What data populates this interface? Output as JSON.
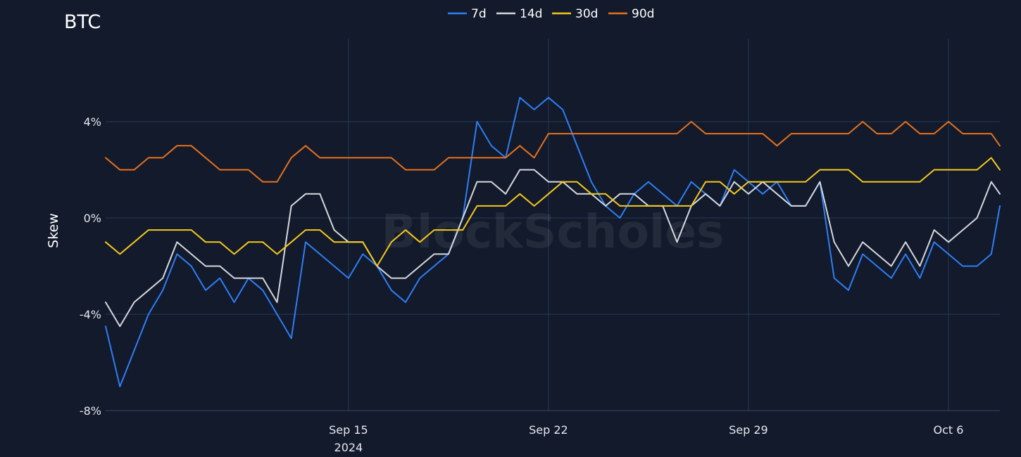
{
  "chart_data": {
    "type": "line",
    "title": "BTC",
    "xlabel": "",
    "ylabel": "Skew",
    "watermark": "BlockScholes",
    "ylim": [
      -8,
      8
    ],
    "y_ticks": [
      {
        "value": 4,
        "label": "4%"
      },
      {
        "value": 0,
        "label": "0%"
      },
      {
        "value": -4,
        "label": "-4%"
      },
      {
        "value": -8,
        "label": "-8%"
      }
    ],
    "x_range_days": [
      0,
      31.3
    ],
    "x_ticks": [
      {
        "day": 8.5,
        "label": "Sep 15",
        "sublabel": "2024"
      },
      {
        "day": 15.5,
        "label": "Sep 22",
        "sublabel": ""
      },
      {
        "day": 22.5,
        "label": "Sep 29",
        "sublabel": ""
      },
      {
        "day": 29.5,
        "label": "Oct 6",
        "sublabel": ""
      }
    ],
    "x_units": "days since Sep 6, 2024 12:00",
    "legend_position": "top-center",
    "series": [
      {
        "name": "7d",
        "color": "#2f7ef5",
        "x": [
          0,
          0.5,
          1,
          1.5,
          2,
          2.5,
          3,
          3.5,
          4,
          4.5,
          5,
          5.5,
          6,
          6.5,
          7,
          7.5,
          8,
          8.5,
          9,
          9.5,
          10,
          10.5,
          11,
          11.5,
          12,
          12.5,
          13,
          13.5,
          14,
          14.5,
          15,
          15.5,
          16,
          16.5,
          17,
          17.5,
          18,
          18.5,
          19,
          19.5,
          20,
          20.5,
          21,
          21.5,
          22,
          22.5,
          23,
          23.5,
          24,
          24.5,
          25,
          25.5,
          26,
          26.5,
          27,
          27.5,
          28,
          28.5,
          29,
          29.5,
          30,
          30.5,
          31,
          31.3
        ],
        "values": [
          -4.5,
          -7.0,
          -5.5,
          -4.0,
          -3.0,
          -1.5,
          -2.0,
          -3.0,
          -2.5,
          -3.5,
          -2.5,
          -3.0,
          -4.0,
          -5.0,
          -1.0,
          -1.5,
          -2.0,
          -2.5,
          -1.5,
          -2.0,
          -3.0,
          -3.5,
          -2.5,
          -2.0,
          -1.5,
          0.0,
          4.0,
          3.0,
          2.5,
          5.0,
          4.5,
          5.0,
          4.5,
          3.0,
          1.5,
          0.5,
          0.0,
          1.0,
          1.5,
          1.0,
          0.5,
          1.5,
          1.0,
          0.5,
          2.0,
          1.5,
          1.0,
          1.5,
          0.5,
          0.5,
          1.5,
          -2.5,
          -3.0,
          -1.5,
          -2.0,
          -2.5,
          -1.5,
          -2.5,
          -1.0,
          -1.5,
          -2.0,
          -2.0,
          -1.5,
          0.5
        ]
      },
      {
        "name": "14d",
        "color": "#d5d8de",
        "x": [
          0,
          0.5,
          1,
          1.5,
          2,
          2.5,
          3,
          3.5,
          4,
          4.5,
          5,
          5.5,
          6,
          6.5,
          7,
          7.5,
          8,
          8.5,
          9,
          9.5,
          10,
          10.5,
          11,
          11.5,
          12,
          12.5,
          13,
          13.5,
          14,
          14.5,
          15,
          15.5,
          16,
          16.5,
          17,
          17.5,
          18,
          18.5,
          19,
          19.5,
          20,
          20.5,
          21,
          21.5,
          22,
          22.5,
          23,
          23.5,
          24,
          24.5,
          25,
          25.5,
          26,
          26.5,
          27,
          27.5,
          28,
          28.5,
          29,
          29.5,
          30,
          30.5,
          31,
          31.3
        ],
        "values": [
          -3.5,
          -4.5,
          -3.5,
          -3.0,
          -2.5,
          -1.0,
          -1.5,
          -2.0,
          -2.0,
          -2.5,
          -2.5,
          -2.5,
          -3.5,
          0.5,
          1.0,
          1.0,
          -0.5,
          -1.0,
          -1.0,
          -2.0,
          -2.5,
          -2.5,
          -2.0,
          -1.5,
          -1.5,
          0.0,
          1.5,
          1.5,
          1.0,
          2.0,
          2.0,
          1.5,
          1.5,
          1.0,
          1.0,
          0.5,
          1.0,
          1.0,
          0.5,
          0.5,
          -1.0,
          0.5,
          1.0,
          0.5,
          1.5,
          1.0,
          1.5,
          1.0,
          0.5,
          0.5,
          1.5,
          -1.0,
          -2.0,
          -1.0,
          -1.5,
          -2.0,
          -1.0,
          -2.0,
          -0.5,
          -1.0,
          -0.5,
          0.0,
          1.5,
          1.0
        ]
      },
      {
        "name": "30d",
        "color": "#f5c81c",
        "x": [
          0,
          0.5,
          1,
          1.5,
          2,
          2.5,
          3,
          3.5,
          4,
          4.5,
          5,
          5.5,
          6,
          6.5,
          7,
          7.5,
          8,
          8.5,
          9,
          9.5,
          10,
          10.5,
          11,
          11.5,
          12,
          12.5,
          13,
          13.5,
          14,
          14.5,
          15,
          15.5,
          16,
          16.5,
          17,
          17.5,
          18,
          18.5,
          19,
          19.5,
          20,
          20.5,
          21,
          21.5,
          22,
          22.5,
          23,
          23.5,
          24,
          24.5,
          25,
          25.5,
          26,
          26.5,
          27,
          27.5,
          28,
          28.5,
          29,
          29.5,
          30,
          30.5,
          31,
          31.3
        ],
        "values": [
          -1.0,
          -1.5,
          -1.0,
          -0.5,
          -0.5,
          -0.5,
          -0.5,
          -1.0,
          -1.0,
          -1.5,
          -1.0,
          -1.0,
          -1.5,
          -1.0,
          -0.5,
          -0.5,
          -1.0,
          -1.0,
          -1.0,
          -2.0,
          -1.0,
          -0.5,
          -1.0,
          -0.5,
          -0.5,
          -0.5,
          0.5,
          0.5,
          0.5,
          1.0,
          0.5,
          1.0,
          1.5,
          1.5,
          1.0,
          1.0,
          0.5,
          0.5,
          0.5,
          0.5,
          0.5,
          0.5,
          1.5,
          1.5,
          1.0,
          1.5,
          1.5,
          1.5,
          1.5,
          1.5,
          2.0,
          2.0,
          2.0,
          1.5,
          1.5,
          1.5,
          1.5,
          1.5,
          2.0,
          2.0,
          2.0,
          2.0,
          2.5,
          2.0
        ]
      },
      {
        "name": "90d",
        "color": "#e8711c",
        "x": [
          0,
          0.5,
          1,
          1.5,
          2,
          2.5,
          3,
          3.5,
          4,
          4.5,
          5,
          5.5,
          6,
          6.5,
          7,
          7.5,
          8,
          8.5,
          9,
          9.5,
          10,
          10.5,
          11,
          11.5,
          12,
          12.5,
          13,
          13.5,
          14,
          14.5,
          15,
          15.5,
          16,
          16.5,
          17,
          17.5,
          18,
          18.5,
          19,
          19.5,
          20,
          20.5,
          21,
          21.5,
          22,
          22.5,
          23,
          23.5,
          24,
          24.5,
          25,
          25.5,
          26,
          26.5,
          27,
          27.5,
          28,
          28.5,
          29,
          29.5,
          30,
          30.5,
          31,
          31.3
        ],
        "values": [
          2.5,
          2.0,
          2.0,
          2.5,
          2.5,
          3.0,
          3.0,
          2.5,
          2.0,
          2.0,
          2.0,
          1.5,
          1.5,
          2.5,
          3.0,
          2.5,
          2.5,
          2.5,
          2.5,
          2.5,
          2.5,
          2.0,
          2.0,
          2.0,
          2.5,
          2.5,
          2.5,
          2.5,
          2.5,
          3.0,
          2.5,
          3.5,
          3.5,
          3.5,
          3.5,
          3.5,
          3.5,
          3.5,
          3.5,
          3.5,
          3.5,
          4.0,
          3.5,
          3.5,
          3.5,
          3.5,
          3.5,
          3.0,
          3.5,
          3.5,
          3.5,
          3.5,
          3.5,
          4.0,
          3.5,
          3.5,
          4.0,
          3.5,
          3.5,
          4.0,
          3.5,
          3.5,
          3.5,
          3.0
        ]
      }
    ]
  }
}
